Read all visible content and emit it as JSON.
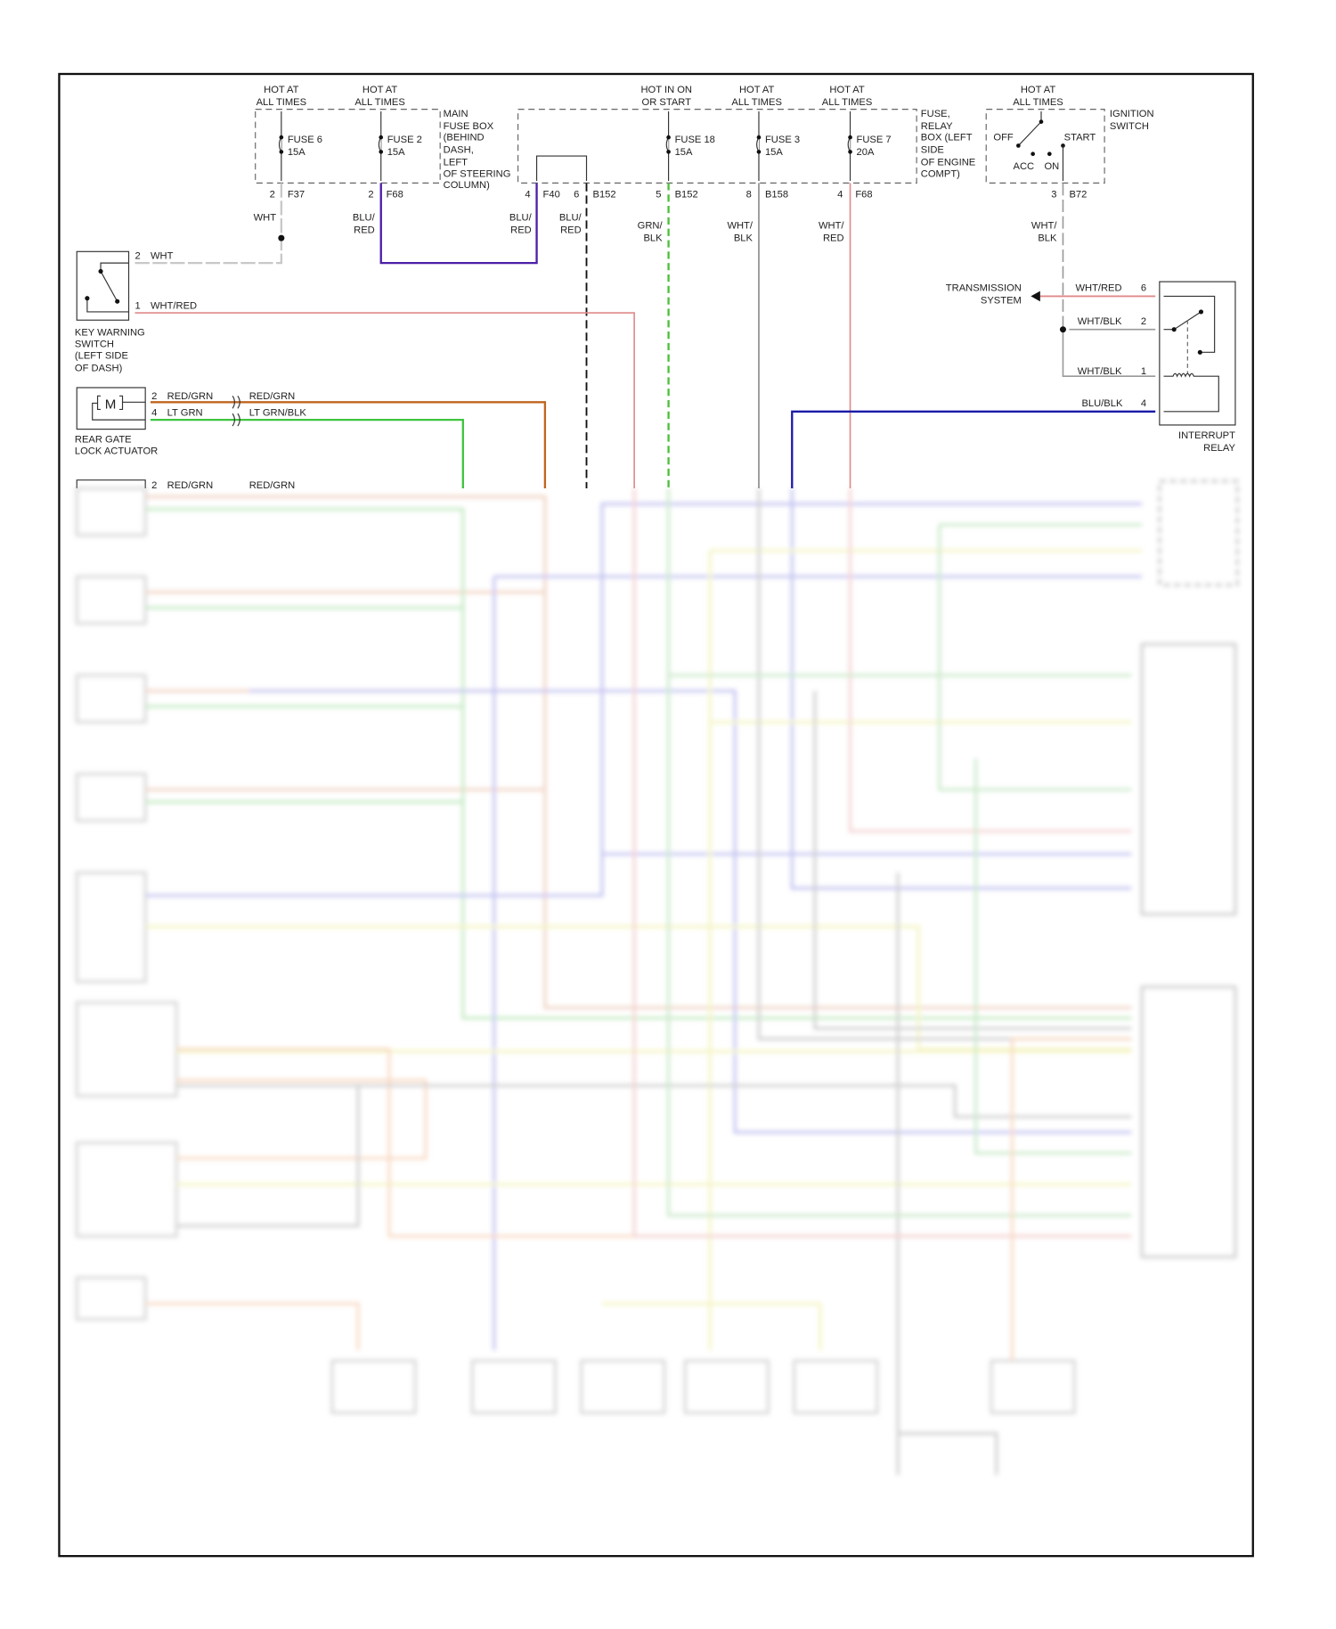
{
  "fuse_box_main": {
    "hot_labels": [
      [
        "HOT AT",
        "ALL TIMES"
      ],
      [
        "HOT AT",
        "ALL TIMES"
      ]
    ],
    "fuses": [
      {
        "name": "FUSE 6",
        "rating": "15A"
      },
      {
        "name": "FUSE 2",
        "rating": "15A"
      }
    ],
    "label": [
      "MAIN",
      "FUSE BOX",
      "(BEHIND",
      "DASH,",
      "LEFT",
      "OF STEERING",
      "COLUMN)"
    ]
  },
  "fuse_relay_box": {
    "hot_labels": [
      [
        "HOT IN ON",
        "OR START"
      ],
      [
        "HOT AT",
        "ALL TIMES"
      ],
      [
        "HOT AT",
        "ALL TIMES"
      ]
    ],
    "fuses": [
      {
        "name": "FUSE 18",
        "rating": "15A"
      },
      {
        "name": "FUSE 3",
        "rating": "15A"
      },
      {
        "name": "FUSE 7",
        "rating": "20A"
      }
    ],
    "label": [
      "FUSE,",
      "RELAY",
      "BOX (LEFT",
      "SIDE",
      "OF ENGINE",
      "COMPT)"
    ]
  },
  "ignition_switch": {
    "hot_label": [
      "HOT AT",
      "ALL TIMES"
    ],
    "label": [
      "IGNITION",
      "SWITCH"
    ],
    "positions": {
      "off": "OFF",
      "start": "START",
      "acc": "ACC",
      "on": "ON"
    }
  },
  "pins": [
    {
      "pin": "2",
      "connector": "F37"
    },
    {
      "pin": "2",
      "connector": "F68"
    },
    {
      "pin": "4",
      "connector": "F40"
    },
    {
      "pin": "6",
      "connector": "B152"
    },
    {
      "pin": "5",
      "connector": "B152"
    },
    {
      "pin": "8",
      "connector": "B158"
    },
    {
      "pin": "4",
      "connector": "F68"
    },
    {
      "pin": "3",
      "connector": "B72"
    }
  ],
  "wire_labels": {
    "wht": "WHT",
    "blu_red_1": [
      "BLU/",
      "RED"
    ],
    "blu_red_2": [
      "BLU/",
      "RED"
    ],
    "blu_red_3": [
      "BLU/",
      "RED"
    ],
    "grn_blk": [
      "GRN/",
      "BLK"
    ],
    "wht_blk": [
      "WHT/",
      "BLK"
    ],
    "wht_red": [
      "WHT/",
      "RED"
    ],
    "wht_blk_ign": [
      "WHT/",
      "BLK"
    ]
  },
  "key_warning_switch": {
    "label": [
      "KEY WARNING",
      "SWITCH",
      "(LEFT SIDE",
      "OF DASH)"
    ],
    "pin2": {
      "pin": "2",
      "wire": "WHT"
    },
    "pin1": {
      "pin": "1",
      "wire": "WHT/RED"
    }
  },
  "rear_gate_actuator": {
    "label": [
      "REAR GATE",
      "LOCK ACTUATOR"
    ],
    "motor": "M",
    "pin2": {
      "pin": "2",
      "wire": "RED/GRN",
      "wire2": "RED/GRN"
    },
    "pin4": {
      "pin": "4",
      "wire": "LT GRN",
      "wire2": "LT GRN/BLK"
    }
  },
  "next_actuator": {
    "pin": "2",
    "wire": "RED/GRN",
    "wire2": "RED/GRN"
  },
  "interrupt_relay": {
    "label": [
      "INTERRUPT",
      "RELAY"
    ],
    "transmission": [
      "TRANSMISSION",
      "SYSTEM"
    ],
    "pins": [
      {
        "pin": "6",
        "wire": "WHT/RED"
      },
      {
        "pin": "2",
        "wire": "WHT/BLK"
      },
      {
        "pin": "1",
        "wire": "WHT/BLK"
      },
      {
        "pin": "4",
        "wire": "BLU/BLK"
      }
    ]
  },
  "colors": {
    "wht": "#c8c8c8",
    "blu_red": "#4b1fa8",
    "blk": "#111111",
    "grn_blk": "#4cbf3a",
    "wht_blk": "#8a8a8a",
    "wht_red": "#e08a8a",
    "red_grn": "#c0651e",
    "lt_grn": "#3ec43e",
    "blu_blk": "#1a1aa8"
  }
}
